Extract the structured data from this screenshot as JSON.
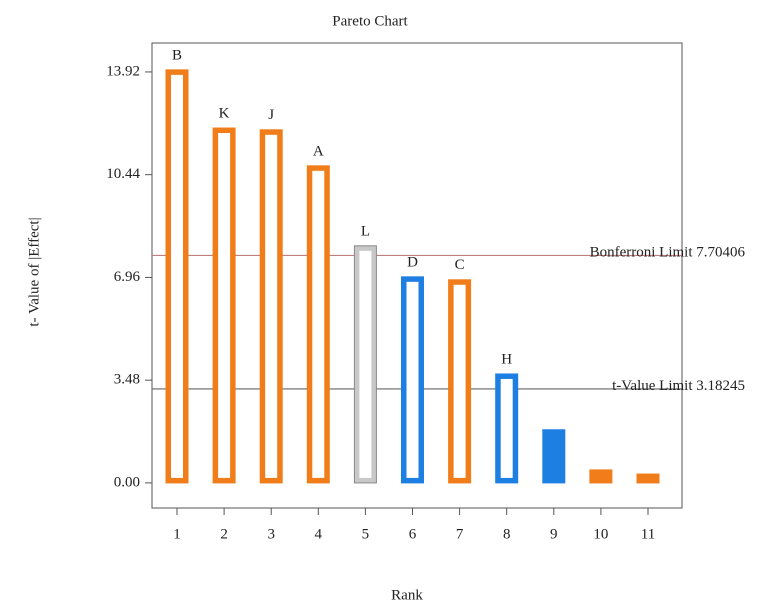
{
  "chart_data": {
    "type": "bar",
    "title": "Pareto Chart",
    "x_label": "Rank",
    "y_label": "t- Value of |Effect|",
    "categories": [
      "1",
      "2",
      "3",
      "4",
      "5",
      "6",
      "7",
      "8",
      "9",
      "10",
      "11"
    ],
    "values": [
      13.99,
      12.02,
      11.96,
      10.74,
      8.03,
      6.98,
      6.88,
      3.69,
      1.8,
      0.44,
      0.3
    ],
    "bar_labels": [
      "B",
      "K",
      "J",
      "A",
      "L",
      "D",
      "C",
      "H",
      null,
      null,
      null
    ],
    "colors": [
      "#f07d19",
      "#f07d19",
      "#f07d19",
      "#f07d19",
      "#c8c8c8",
      "#1e7fe3",
      "#f07d19",
      "#1e7fe3",
      "#1e7fe3",
      "#f07d19",
      "#f07d19"
    ],
    "ylim": [
      -0.85,
      14.9
    ],
    "yticks": [
      {
        "value": 0,
        "label": "0.00"
      },
      3.48,
      6.96,
      10.44,
      13.92
    ],
    "reference_lines": [
      {
        "label": "Bonferroni Limit",
        "value": 7.70406,
        "color": "#c08080"
      },
      {
        "label": "t-Value Limit",
        "value": 3.18245,
        "color": "#666666"
      }
    ]
  }
}
